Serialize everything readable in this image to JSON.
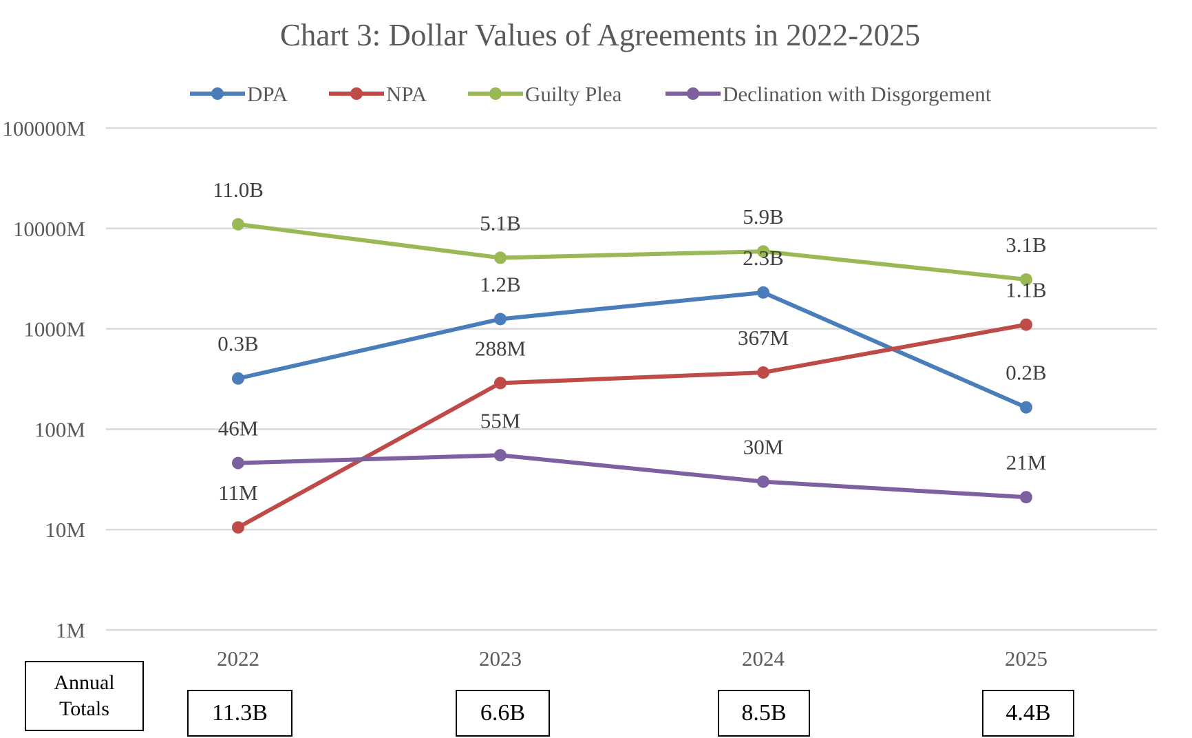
{
  "chart_data": {
    "type": "line",
    "title": "Chart 3: Dollar Values of Agreements in 2022-2025",
    "xlabel": "",
    "ylabel": "",
    "y_scale": "log",
    "ylim": [
      1,
      100000
    ],
    "y_unit": "M",
    "y_ticks": [
      "1M",
      "10M",
      "100M",
      "1000M",
      "10000M",
      "100000M"
    ],
    "categories": [
      "2022",
      "2023",
      "2024",
      "2025"
    ],
    "grid": true,
    "legend_position": "top",
    "series": [
      {
        "name": "DPA",
        "color": "#4a7ebb",
        "values": [
          320,
          1250,
          2300,
          165
        ],
        "labels": [
          "0.3B",
          "1.2B",
          "2.3B",
          "0.2B"
        ]
      },
      {
        "name": "NPA",
        "color": "#be4b48",
        "values": [
          10.5,
          288,
          367,
          1100
        ],
        "labels": [
          "11M",
          "288M",
          "367M",
          "1.1B"
        ]
      },
      {
        "name": "Guilty Plea",
        "color": "#98b954",
        "values": [
          11000,
          5100,
          5900,
          3100
        ],
        "labels": [
          "11.0B",
          "5.1B",
          "5.9B",
          "3.1B"
        ]
      },
      {
        "name": "Declination with Disgorgement",
        "color": "#7d60a0",
        "values": [
          46,
          55,
          30,
          21
        ],
        "labels": [
          "46M",
          "55M",
          "30M",
          "21M"
        ]
      }
    ]
  },
  "annual_totals": {
    "label_line1": "Annual",
    "label_line2": "Totals",
    "values": [
      "11.3B",
      "6.6B",
      "8.5B",
      "4.4B"
    ]
  }
}
